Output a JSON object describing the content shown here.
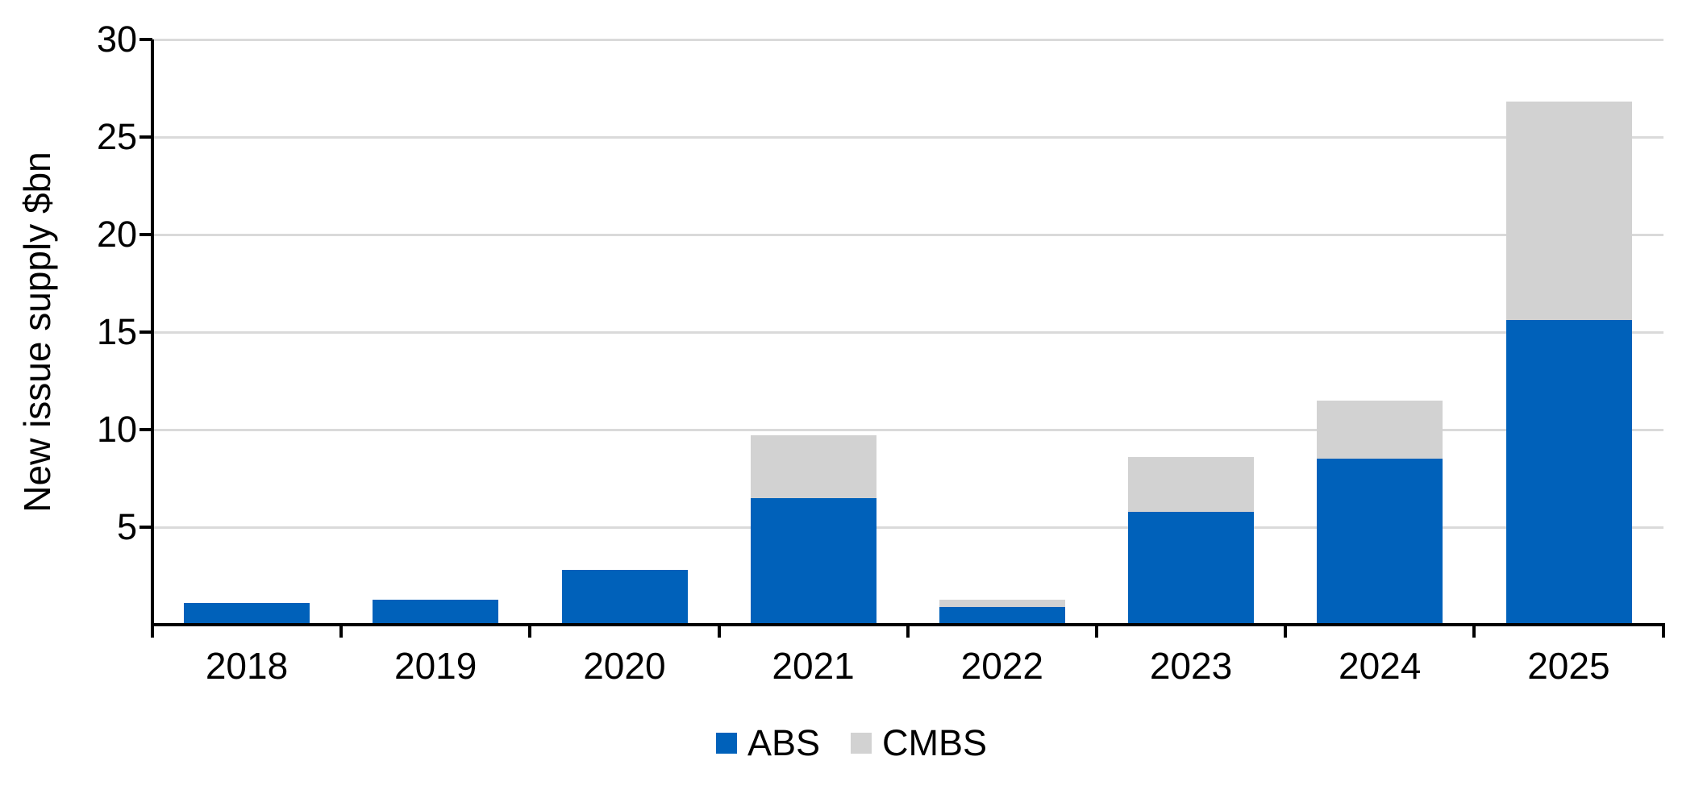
{
  "chart_data": {
    "type": "bar",
    "stacked": true,
    "categories": [
      "2018",
      "2019",
      "2020",
      "2021",
      "2022",
      "2023",
      "2024",
      "2025"
    ],
    "series": [
      {
        "name": "ABS",
        "color": "#0061BA",
        "values": [
          1.1,
          1.3,
          2.8,
          6.5,
          0.9,
          5.8,
          8.5,
          15.6
        ]
      },
      {
        "name": "CMBS",
        "color": "#D2D2D2",
        "values": [
          0,
          0,
          0,
          3.2,
          0.4,
          2.8,
          3.0,
          11.2
        ]
      }
    ],
    "xlabel": "",
    "ylabel": "New issue supply $bn",
    "ylim": [
      0,
      30
    ],
    "yticks": [
      5,
      10,
      15,
      20,
      25,
      30
    ],
    "grid": "horizontal",
    "gridline_color": "#DADADA",
    "axis_color": "#000000",
    "legend_position": "bottom"
  }
}
